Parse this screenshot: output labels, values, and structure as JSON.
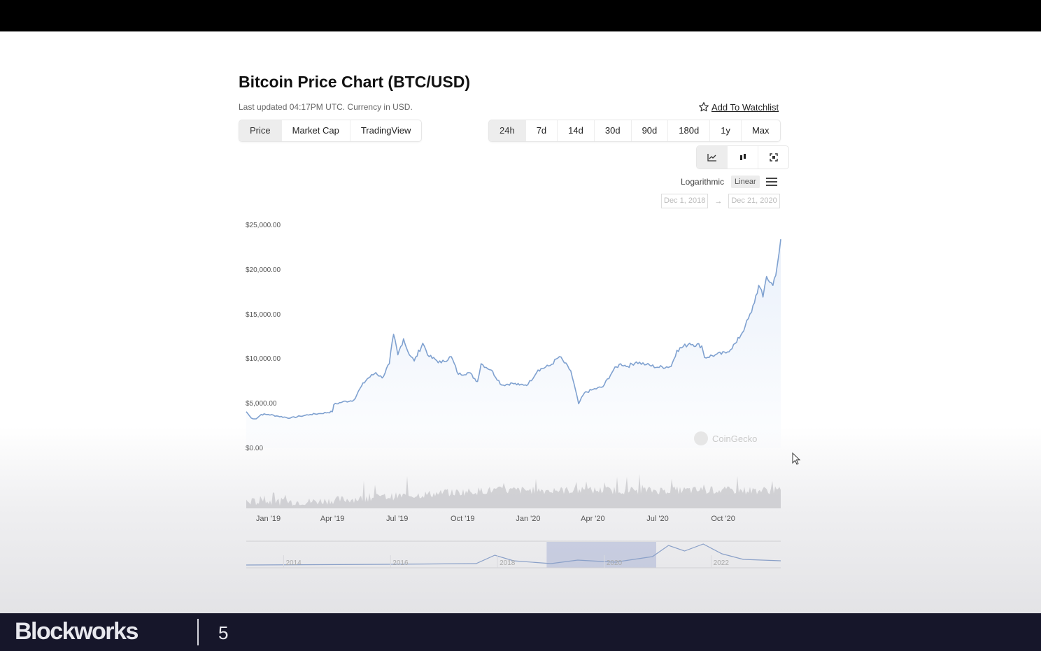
{
  "title": "Bitcoin Price Chart (BTC/USD)",
  "subtitle": "Last updated 04:17PM UTC. Currency in USD.",
  "watchlist_label": "Add To Watchlist",
  "data_tabs": [
    {
      "label": "Price",
      "active": true
    },
    {
      "label": "Market Cap",
      "active": false
    },
    {
      "label": "TradingView",
      "active": false
    }
  ],
  "range_tabs": [
    {
      "label": "24h",
      "active": true
    },
    {
      "label": "7d",
      "active": false
    },
    {
      "label": "14d",
      "active": false
    },
    {
      "label": "30d",
      "active": false
    },
    {
      "label": "90d",
      "active": false
    },
    {
      "label": "180d",
      "active": false
    },
    {
      "label": "1y",
      "active": false
    },
    {
      "label": "Max",
      "active": false
    }
  ],
  "view_buttons": [
    {
      "icon": "line-chart-icon",
      "active": true
    },
    {
      "icon": "candlestick-icon",
      "active": false
    },
    {
      "icon": "fullscreen-icon",
      "active": false
    }
  ],
  "scale": {
    "log_label": "Logarithmic",
    "linear_label": "Linear",
    "selected": "Linear"
  },
  "date_range": {
    "from": "Dec 1, 2018",
    "to": "Dec 21, 2020",
    "separator": "→"
  },
  "watermark": "CoinGecko",
  "colors": {
    "line": "#7fa1d0",
    "area": "#e8effa",
    "volume": "#c8c8cc",
    "navigator_selection": "#9da9d0"
  },
  "chart_data": {
    "type": "line",
    "y_tick_labels": [
      "$25,000.00",
      "$20,000.00",
      "$15,000.00",
      "$10,000.00",
      "$5,000.00",
      "$0.00"
    ],
    "ylim": [
      0,
      25000
    ],
    "x_tick_labels": [
      "Jan '19",
      "Apr '19",
      "Jul '19",
      "Oct '19",
      "Jan '20",
      "Apr '20",
      "Jul '20",
      "Oct '20"
    ],
    "x_tick_dates": [
      "2019-01-01",
      "2019-04-01",
      "2019-07-01",
      "2019-10-01",
      "2020-01-01",
      "2020-04-01",
      "2020-07-01",
      "2020-10-01"
    ],
    "xlim": [
      "2018-12-01",
      "2020-12-21"
    ],
    "series": [
      {
        "points": [
          [
            "2018-12-01",
            4100
          ],
          [
            "2018-12-08",
            3400
          ],
          [
            "2018-12-15",
            3300
          ],
          [
            "2018-12-22",
            3800
          ],
          [
            "2019-01-01",
            3800
          ],
          [
            "2019-01-15",
            3600
          ],
          [
            "2019-02-01",
            3400
          ],
          [
            "2019-02-15",
            3600
          ],
          [
            "2019-03-01",
            3800
          ],
          [
            "2019-03-15",
            3900
          ],
          [
            "2019-04-01",
            4100
          ],
          [
            "2019-04-03",
            4900
          ],
          [
            "2019-04-15",
            5200
          ],
          [
            "2019-05-01",
            5400
          ],
          [
            "2019-05-12",
            7000
          ],
          [
            "2019-05-20",
            7800
          ],
          [
            "2019-06-01",
            8500
          ],
          [
            "2019-06-10",
            7900
          ],
          [
            "2019-06-20",
            9500
          ],
          [
            "2019-06-26",
            12800
          ],
          [
            "2019-07-02",
            10500
          ],
          [
            "2019-07-10",
            12300
          ],
          [
            "2019-07-16",
            10900
          ],
          [
            "2019-07-25",
            9800
          ],
          [
            "2019-08-06",
            11800
          ],
          [
            "2019-08-15",
            10300
          ],
          [
            "2019-09-01",
            9600
          ],
          [
            "2019-09-15",
            10300
          ],
          [
            "2019-09-25",
            8300
          ],
          [
            "2019-10-10",
            8500
          ],
          [
            "2019-10-22",
            7500
          ],
          [
            "2019-10-27",
            9500
          ],
          [
            "2019-11-10",
            8800
          ],
          [
            "2019-11-25",
            7100
          ],
          [
            "2019-12-10",
            7300
          ],
          [
            "2019-12-20",
            7100
          ],
          [
            "2020-01-01",
            7200
          ],
          [
            "2020-01-15",
            8800
          ],
          [
            "2020-02-01",
            9300
          ],
          [
            "2020-02-14",
            10300
          ],
          [
            "2020-03-01",
            8700
          ],
          [
            "2020-03-12",
            5000
          ],
          [
            "2020-03-20",
            6200
          ],
          [
            "2020-04-01",
            6600
          ],
          [
            "2020-04-15",
            6900
          ],
          [
            "2020-04-30",
            8800
          ],
          [
            "2020-05-10",
            9500
          ],
          [
            "2020-05-20",
            9200
          ],
          [
            "2020-06-01",
            9700
          ],
          [
            "2020-06-15",
            9400
          ],
          [
            "2020-07-01",
            9100
          ],
          [
            "2020-07-20",
            9200
          ],
          [
            "2020-07-28",
            11000
          ],
          [
            "2020-08-15",
            11800
          ],
          [
            "2020-09-01",
            11500
          ],
          [
            "2020-09-05",
            10200
          ],
          [
            "2020-09-20",
            10500
          ],
          [
            "2020-10-05",
            10700
          ],
          [
            "2020-10-20",
            11900
          ],
          [
            "2020-11-01",
            13700
          ],
          [
            "2020-11-10",
            15300
          ],
          [
            "2020-11-20",
            18300
          ],
          [
            "2020-11-26",
            17000
          ],
          [
            "2020-12-01",
            19300
          ],
          [
            "2020-12-10",
            18300
          ],
          [
            "2020-12-16",
            20500
          ],
          [
            "2020-12-21",
            23500
          ]
        ]
      }
    ],
    "navigator": {
      "x_tick_labels": [
        "2014",
        "2016",
        "2018",
        "2020",
        "2022"
      ],
      "selection": [
        "2018-12-01",
        "2020-12-21"
      ]
    }
  },
  "cursor_icon": "mouse-pointer-icon",
  "footer": {
    "brand": "Blockworks",
    "page": "5"
  }
}
